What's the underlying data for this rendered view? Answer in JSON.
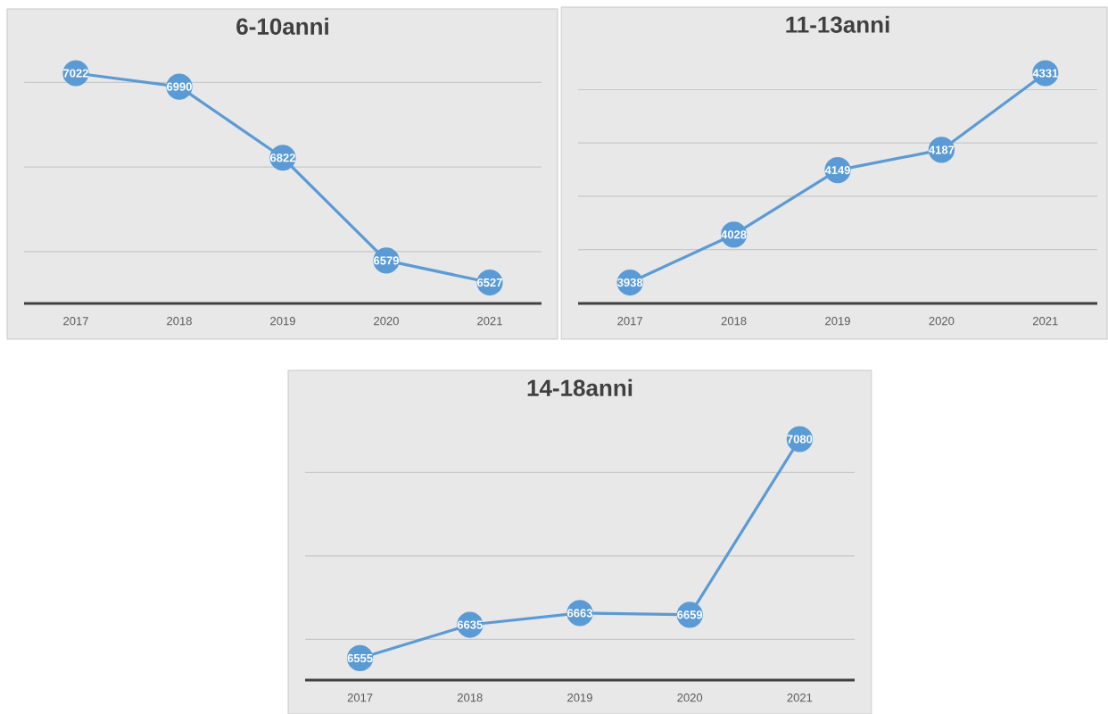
{
  "chart_data": [
    {
      "type": "line",
      "title": "6-10anni",
      "categories": [
        "2017",
        "2018",
        "2019",
        "2020",
        "2021"
      ],
      "values": [
        7022,
        6990,
        6822,
        6579,
        6527
      ],
      "color": "#5b9bd5",
      "grid": "y",
      "marker": "circle",
      "data_labels": true,
      "tick_labels": "x"
    },
    {
      "type": "line",
      "title": "11-13anni",
      "categories": [
        "2017",
        "2018",
        "2019",
        "2020",
        "2021"
      ],
      "values": [
        3938,
        4028,
        4149,
        4187,
        4331
      ],
      "color": "#5b9bd5",
      "grid": "y",
      "marker": "circle",
      "data_labels": true,
      "tick_labels": "x"
    },
    {
      "type": "line",
      "title": "14-18anni",
      "categories": [
        "2017",
        "2018",
        "2019",
        "2020",
        "2021"
      ],
      "values": [
        6555,
        6635,
        6663,
        6659,
        7080
      ],
      "color": "#5b9bd5",
      "grid": "y",
      "marker": "circle",
      "data_labels": true,
      "tick_labels": "x"
    }
  ]
}
